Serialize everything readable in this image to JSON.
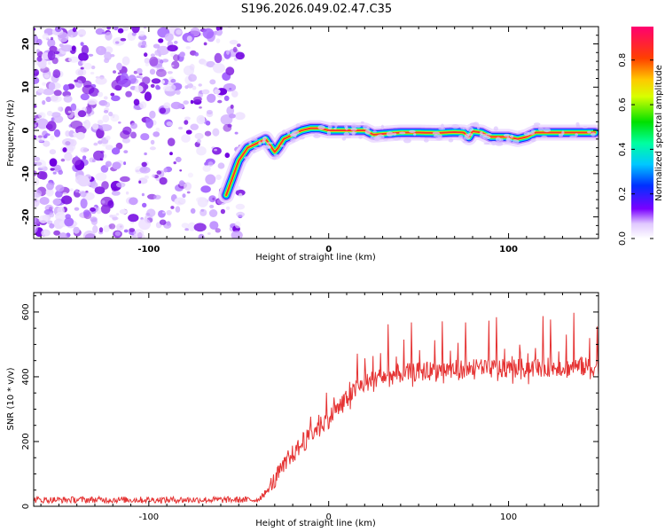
{
  "title": "S196.2026.049.02.47.C35",
  "chart_data": [
    {
      "type": "heatmap",
      "title": "S196.2026.049.02.47.C35",
      "xlabel": "Height of straight line (km)",
      "ylabel": "Frequency (Hz)",
      "xlim": [
        -164,
        150
      ],
      "ylim": [
        -25,
        24
      ],
      "x_ticks": [
        -100,
        0,
        100
      ],
      "y_ticks": [
        -20,
        -10,
        0,
        10,
        20
      ],
      "signal_ridge": {
        "x": [
          -57,
          -50,
          -45,
          -40,
          -35,
          -30,
          -28,
          -25,
          -20,
          -15,
          -10,
          -5,
          0,
          10,
          20,
          25,
          30,
          40,
          50,
          60,
          70,
          75,
          78,
          80,
          85,
          90,
          95,
          100,
          105,
          110,
          115,
          120,
          130,
          140,
          148
        ],
        "frequency": [
          -15,
          -7,
          -4,
          -3,
          -2,
          -5,
          -4,
          -2,
          -1,
          0,
          0.5,
          0.5,
          0,
          0,
          0,
          -1,
          -0.8,
          -0.5,
          -0.5,
          -0.6,
          -0.4,
          -0.5,
          -1.6,
          -0.2,
          -0.5,
          -1.5,
          -1.5,
          -1.5,
          -2,
          -1.5,
          -0.5,
          -0.5,
          -0.5,
          -0.5,
          -0.5
        ]
      },
      "noise_region_xmax": -52,
      "colorbar": {
        "label": "Normalized spectral amplitude",
        "range": [
          0,
          0.95
        ],
        "ticks": [
          0.0,
          0.2,
          0.4,
          0.6,
          0.8
        ]
      }
    },
    {
      "type": "line",
      "xlabel": "Height of straight line (km)",
      "ylabel": "SNR (10 * v/v)",
      "xlim": [
        -164,
        150
      ],
      "ylim": [
        0,
        660
      ],
      "x_ticks": [
        -100,
        0,
        100
      ],
      "y_ticks": [
        0,
        200,
        400,
        600
      ],
      "color": "#e53333",
      "baseline_profile": {
        "x": [
          -164,
          -40,
          -35,
          -30,
          -25,
          -20,
          -15,
          -10,
          -5,
          0,
          5,
          10,
          15,
          20,
          30,
          40,
          60,
          80,
          100,
          120,
          150
        ],
        "snr": [
          20,
          20,
          40,
          80,
          120,
          160,
          190,
          220,
          250,
          270,
          300,
          330,
          360,
          380,
          400,
          410,
          420,
          425,
          425,
          430,
          430
        ]
      },
      "noise_amplitude": 10,
      "spike_amplitude": 150,
      "max_value": 660
    }
  ]
}
